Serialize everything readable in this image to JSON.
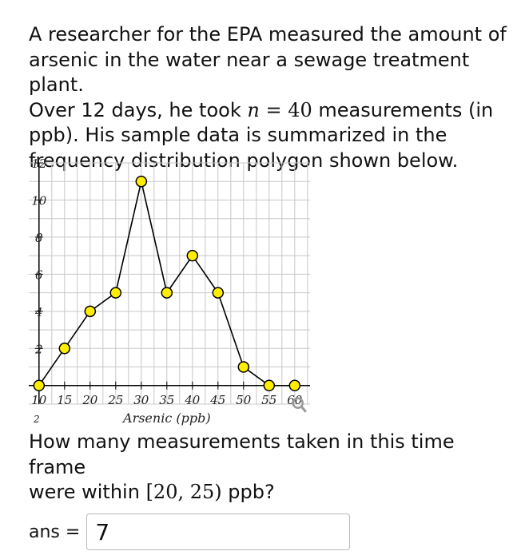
{
  "problem": {
    "line1": "A researcher for the EPA measured the amount of",
    "line2": "arsenic in the water near a sewage treatment plant.",
    "line3_before": "Over 12 days, he took ",
    "n_var": "n",
    "equals": "=",
    "n_value": "40",
    "line3_after": " measurements (in",
    "line4": "ppb). His sample data is summarized in the",
    "line5": "frequency distribution polygon shown below."
  },
  "chart_data": {
    "type": "line",
    "x": [
      10,
      15,
      20,
      25,
      30,
      35,
      40,
      45,
      50,
      55,
      60
    ],
    "values": [
      0,
      2,
      4,
      5,
      11,
      5,
      7,
      5,
      1,
      0,
      0
    ],
    "x_ticks": [
      "10",
      "15",
      "20",
      "25",
      "30",
      "35",
      "40",
      "45",
      "50",
      "55",
      "60"
    ],
    "y_ticks": [
      "2",
      "4",
      "6",
      "8",
      "10",
      "12"
    ],
    "xlabel": "Arsenic (ppb)",
    "ylabel": "",
    "xlim": [
      8,
      63
    ],
    "ylim": [
      -1,
      12
    ],
    "grid": true,
    "marker_color": "#ffee00",
    "line_color": "#000000",
    "below_axis_text": "2"
  },
  "question": {
    "line1": "How many measurements taken in this time frame",
    "line2_before": "were within ",
    "interval": "[20, 25)",
    "line2_after": " ppb?"
  },
  "answer": {
    "label": "ans =",
    "value": "7"
  }
}
